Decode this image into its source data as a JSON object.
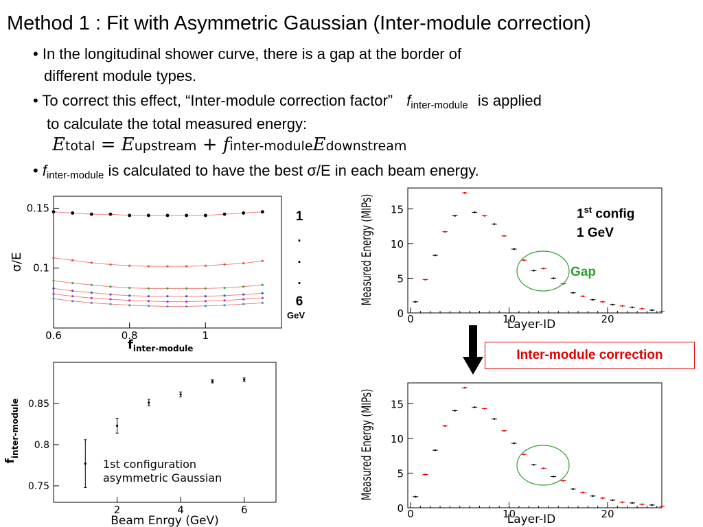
{
  "title": "Method 1 : Fit with Asymmetric Gaussian (Inter-module correction)",
  "bullets": {
    "b1_line1": "In the longitudinal shower curve, there is a gap at the border of",
    "b1_line2": "different module types.",
    "b2_pre": "To correct this effect, “Inter-module correction factor”",
    "b2_f": "f",
    "b2_sub": "inter-module",
    "b2_post": "is applied",
    "b2_line2": "to calculate the total measured energy:",
    "b3_f": "f",
    "b3_sub": "inter-module",
    "b3_post": "is calculated to have the best σ/E in each beam energy."
  },
  "equation": {
    "lhs": "E",
    "lhs_sub": "total",
    "eq": "=",
    "t1": "E",
    "t1_sub": "upstream",
    "plus": "+",
    "t2": "f",
    "t2_sub": "inter-module",
    "t3": "E",
    "t3_sub": "downstream"
  },
  "labels": {
    "energy_marks": [
      "1",
      ".",
      ".",
      ".",
      "6"
    ],
    "gev": "GeV",
    "config_num": "1",
    "config_sup": "st",
    "config_rest": " config",
    "config_energy": "1 GeV",
    "gap": "Gap",
    "correction": "Inter-module correction"
  },
  "colors": {
    "fit_line": "#f08080",
    "gap_circle": "#2ea02e",
    "correction": "#e00000",
    "arrow": "#000000"
  },
  "chart_data": [
    {
      "type": "scatter",
      "ylabel": "σ/E",
      "xlabel": "f",
      "xlabel_sub": "inter-module",
      "xlim": [
        0.6,
        1.2
      ],
      "ylim": [
        0.05,
        0.16
      ],
      "xticks": [
        0.6,
        0.8,
        1
      ],
      "xtick_labels": [
        "0.6",
        "0.8",
        "1"
      ],
      "yticks": [
        0.1,
        0.15
      ],
      "ytick_labels": [
        "0.1",
        "0.15"
      ],
      "x": [
        0.6,
        0.65,
        0.7,
        0.75,
        0.8,
        0.85,
        0.9,
        0.95,
        1.0,
        1.05,
        1.1,
        1.15
      ],
      "series": [
        {
          "values": [
            0.147,
            0.146,
            0.145,
            0.145,
            0.144,
            0.144,
            0.144,
            0.144,
            0.144,
            0.145,
            0.146,
            0.147
          ],
          "color": "#000000"
        },
        {
          "values": [
            0.1085,
            0.1065,
            0.1045,
            0.103,
            0.102,
            0.1015,
            0.1015,
            0.1015,
            0.102,
            0.103,
            0.104,
            0.106
          ],
          "color": "#e05050"
        },
        {
          "values": [
            0.0895,
            0.0875,
            0.086,
            0.0845,
            0.0835,
            0.083,
            0.083,
            0.083,
            0.083,
            0.0835,
            0.0845,
            0.086
          ],
          "color": "#30b030"
        },
        {
          "values": [
            0.083,
            0.081,
            0.0795,
            0.078,
            0.077,
            0.0765,
            0.0765,
            0.0765,
            0.0765,
            0.077,
            0.078,
            0.079
          ],
          "color": "#3050d0"
        },
        {
          "values": [
            0.0785,
            0.0765,
            0.075,
            0.074,
            0.073,
            0.0725,
            0.072,
            0.072,
            0.0725,
            0.073,
            0.074,
            0.075
          ],
          "color": "#c030c0"
        },
        {
          "values": [
            0.0745,
            0.0725,
            0.071,
            0.07,
            0.069,
            0.0685,
            0.068,
            0.068,
            0.0685,
            0.069,
            0.07,
            0.071
          ],
          "color": "#30a0c0"
        }
      ]
    },
    {
      "type": "scatter",
      "title": "1st configuration",
      "subtitle": "asymmetric Gaussian",
      "xlabel": "Beam Enrgy (GeV)",
      "ylabel": "f",
      "ylabel_sub": "inter-module",
      "xlim": [
        0,
        7
      ],
      "ylim": [
        0.73,
        0.9
      ],
      "xticks": [
        2,
        4,
        6
      ],
      "xtick_labels": [
        "2",
        "4",
        "6"
      ],
      "yticks": [
        0.75,
        0.8,
        0.85
      ],
      "ytick_labels": [
        "0.75",
        "0.8",
        "0.85"
      ],
      "x": [
        1,
        2,
        3,
        4,
        5,
        6
      ],
      "values": [
        0.777,
        0.823,
        0.851,
        0.861,
        0.877,
        0.879
      ],
      "errors": [
        0.029,
        0.009,
        0.004,
        0.003,
        0.002,
        0.002
      ]
    },
    {
      "type": "scatter",
      "xlabel": "Layer-ID",
      "ylabel": "Measured Energy (MIPs)",
      "xlim": [
        0,
        25.5
      ],
      "ylim": [
        0,
        18
      ],
      "xticks": [
        0,
        10,
        20
      ],
      "xtick_labels": [
        "0",
        "10",
        "20"
      ],
      "yticks": [
        0,
        5,
        10,
        15
      ],
      "ytick_labels": [
        "0",
        "5",
        "10",
        "15"
      ],
      "x": [
        0.5,
        1.5,
        2.5,
        3.5,
        4.5,
        5.5,
        6.5,
        7.5,
        8.5,
        9.5,
        10.5,
        11.5,
        12.5,
        13.5,
        14.5,
        15.5,
        16.5,
        17.5,
        18.5,
        19.5,
        20.5,
        21.5,
        22.5,
        23.5,
        24.5,
        25.5
      ],
      "values": [
        1.6,
        4.8,
        8.3,
        11.7,
        14.0,
        17.3,
        14.5,
        14.0,
        12.8,
        11.1,
        9.2,
        7.6,
        6.1,
        6.4,
        5.0,
        4.2,
        2.9,
        2.4,
        1.9,
        1.6,
        1.2,
        1.0,
        0.8,
        0.6,
        0.4,
        0.2
      ],
      "point_colors": [
        "#000000",
        "#e00000",
        "#000000",
        "#e00000",
        "#000000",
        "#e00000",
        "#000000",
        "#e00000",
        "#000000",
        "#e00000",
        "#000000",
        "#e00000",
        "#000000",
        "#e00000",
        "#000000",
        "#e00000",
        "#000000",
        "#e00000",
        "#000000",
        "#e00000",
        "#000000",
        "#e00000",
        "#000000",
        "#e00000",
        "#000000",
        "#e00000"
      ]
    },
    {
      "type": "scatter",
      "xlabel": "Layer-ID",
      "ylabel": "Measured Energy (MIPs)",
      "xlim": [
        0,
        25.5
      ],
      "ylim": [
        0,
        18
      ],
      "xticks": [
        0,
        10,
        20
      ],
      "xtick_labels": [
        "0",
        "10",
        "20"
      ],
      "yticks": [
        0,
        5,
        10,
        15
      ],
      "ytick_labels": [
        "0",
        "5",
        "10",
        "15"
      ],
      "x": [
        0.5,
        1.5,
        2.5,
        3.5,
        4.5,
        5.5,
        6.5,
        7.5,
        8.5,
        9.5,
        10.5,
        11.5,
        12.5,
        13.5,
        14.5,
        15.5,
        16.5,
        17.5,
        18.5,
        19.5,
        20.5,
        21.5,
        22.5,
        23.5,
        24.5,
        25.5
      ],
      "values": [
        1.6,
        4.8,
        8.3,
        11.8,
        14.0,
        17.3,
        14.5,
        14.3,
        12.8,
        11.1,
        9.3,
        7.7,
        6.2,
        5.7,
        4.5,
        3.9,
        2.7,
        2.2,
        1.7,
        1.4,
        1.1,
        0.8,
        0.7,
        0.5,
        0.4,
        0.2
      ],
      "point_colors": [
        "#000000",
        "#e00000",
        "#000000",
        "#e00000",
        "#000000",
        "#e00000",
        "#000000",
        "#e00000",
        "#000000",
        "#e00000",
        "#000000",
        "#e00000",
        "#000000",
        "#e00000",
        "#000000",
        "#e00000",
        "#000000",
        "#e00000",
        "#000000",
        "#e00000",
        "#000000",
        "#e00000",
        "#000000",
        "#e00000",
        "#000000",
        "#e00000"
      ]
    }
  ]
}
